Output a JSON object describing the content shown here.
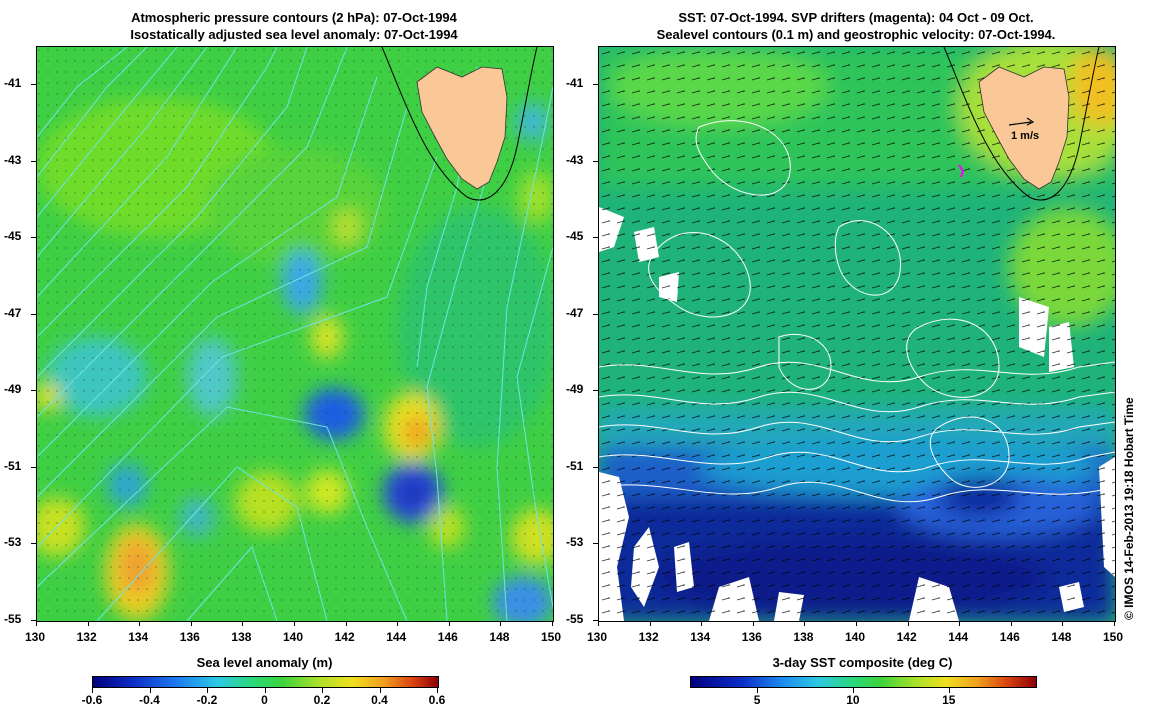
{
  "left_panel": {
    "title_line1": "Atmospheric pressure contours (2 hPa): 07-Oct-1994",
    "title_line2": "Isostatically adjusted sea level anomaly: 07-Oct-1994",
    "colorbar": {
      "label": "Sea level anomaly (m)",
      "ticks": [
        "-0.6",
        "-0.4",
        "-0.2",
        "0",
        "0.2",
        "0.4",
        "0.6"
      ],
      "tick_values": [
        -0.6,
        -0.4,
        -0.2,
        0,
        0.2,
        0.4,
        0.6
      ],
      "range": [
        -0.6,
        0.6
      ]
    }
  },
  "right_panel": {
    "title_line1": "SST: 07-Oct-1994. SVP drifters (magenta): 04 Oct - 09 Oct.",
    "title_line2": "Sealevel contours (0.1 m) and geostrophic velocity: 07-Oct-1994.",
    "vector_scale_label": "1 m/s",
    "colorbar": {
      "label": "3-day SST composite (deg C)",
      "ticks": [
        "5",
        "10",
        "15"
      ],
      "tick_values": [
        5,
        10,
        15
      ],
      "range": [
        1.5,
        19.5
      ]
    }
  },
  "axes": {
    "x_ticks": [
      "130",
      "132",
      "134",
      "136",
      "138",
      "140",
      "142",
      "144",
      "146",
      "148",
      "150"
    ],
    "y_ticks": [
      "-41",
      "-43",
      "-45",
      "-47",
      "-49",
      "-51",
      "-53",
      "-55"
    ],
    "lon_range": [
      130,
      150
    ],
    "lat_range": [
      -55,
      -40
    ]
  },
  "credit": "© IMOS 14-Feb-2013 19:18 Hobart Time",
  "colors": {
    "land": "#f9c896",
    "pressure_contours": "#6fe3e3",
    "drifters": "#ff00ff",
    "sea_level_contours": "#ffffff",
    "vectors": "#000000"
  }
}
